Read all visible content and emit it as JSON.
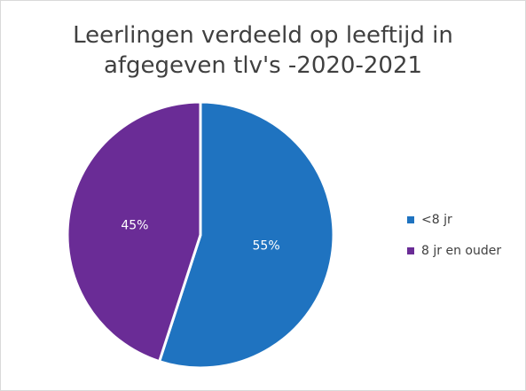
{
  "chart_data": {
    "type": "pie",
    "title_lines": [
      "Leerlingen verdeeld op leeftijd in",
      "afgegeven tlv's -2020-2021"
    ],
    "categories": [
      "<8 jr",
      "8 jr en ouder"
    ],
    "values": [
      55,
      45
    ],
    "labels": [
      "55%",
      "45%"
    ],
    "colors": [
      "#1f73c0",
      "#6a2c96"
    ],
    "label_color": "#ffffff",
    "start_angle_deg": 0,
    "direction": "clockwise",
    "legend": "right"
  },
  "legend": {
    "items": [
      {
        "label": "<8 jr",
        "color": "#1f73c0"
      },
      {
        "label": "8 jr en ouder",
        "color": "#6a2c96"
      }
    ]
  }
}
